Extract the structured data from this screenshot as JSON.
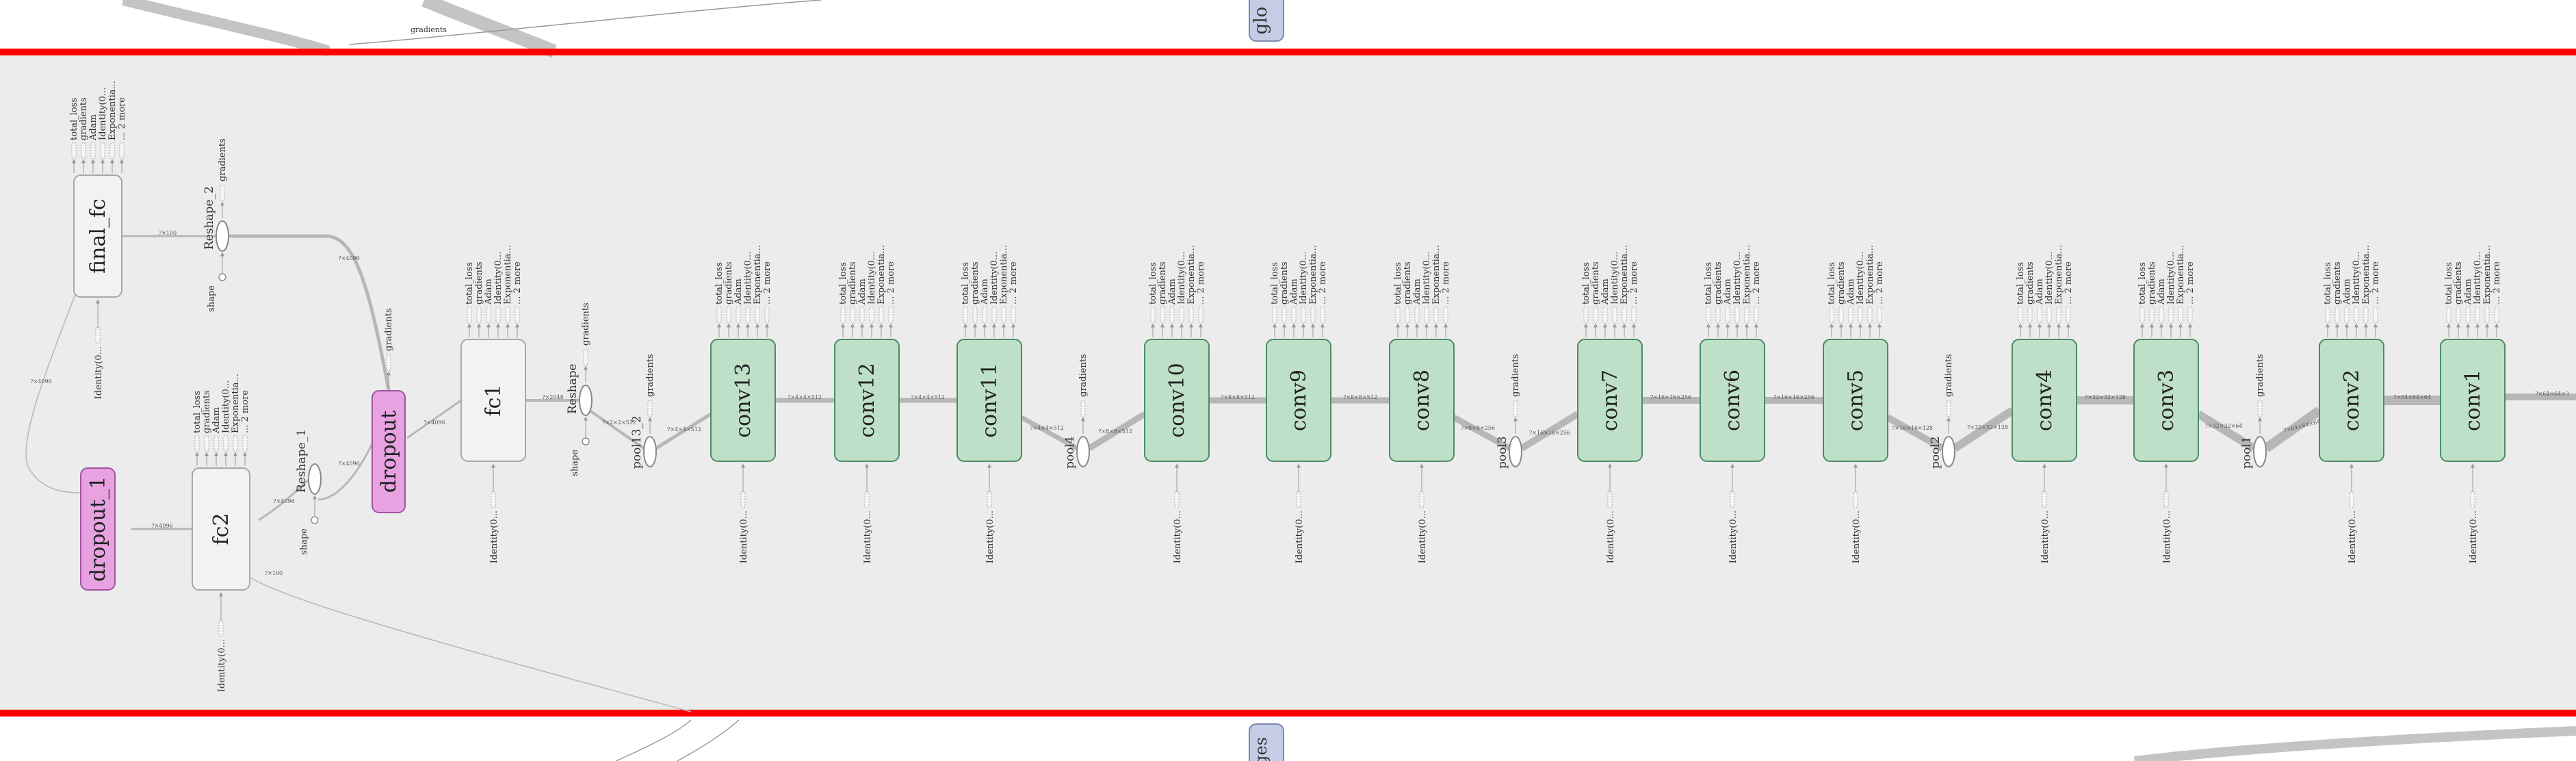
{
  "header": {
    "top_node_label": "glo",
    "bottom_node_label": "ges",
    "top_edge_label": "gradients"
  },
  "conv_nodes": [
    "conv1",
    "conv2",
    "conv3",
    "conv4",
    "conv5",
    "conv6",
    "conv7",
    "conv8",
    "conv9",
    "conv10",
    "conv11",
    "conv12",
    "conv13"
  ],
  "pool_nodes": [
    "pool1",
    "pool2",
    "pool3",
    "pool4",
    "pool13_2"
  ],
  "fc_nodes": {
    "fc1": "fc1",
    "fc2": "fc2",
    "final_fc": "final_fc"
  },
  "dropout_nodes": {
    "dropout": "dropout",
    "dropout_1": "dropout_1"
  },
  "reshape_nodes": {
    "reshape": "Reshape",
    "reshape_1": "Reshape_1",
    "reshape_2": "Reshape_2"
  },
  "port_labels": {
    "outputs": [
      "total_loss",
      "gradients",
      "Adam",
      "Identity(0...",
      "Exponentia...",
      "... 2 more"
    ],
    "gradients": "gradients",
    "identity": "Identity(0...",
    "shape": "shape"
  },
  "edge_labels": {
    "conv1_conv2": "?×64×64×3",
    "conv2_pool1": "?×64×64×64",
    "pool1_conv3": "?×32×32×64",
    "conv3_conv4": "?×32×32×128",
    "conv4_pool2": "?×32×32×128",
    "pool2_conv5": "?×16×16×128",
    "conv5_conv6": "?×16×16×256",
    "conv6_conv7": "?×16×16×256",
    "conv7_pool3": "?×16×16×256",
    "pool3_conv8": "?×8×8×256",
    "conv8_conv9": "?×8×8×512",
    "conv9_conv10": "?×8×8×512",
    "conv10_pool4": "?×8×8×512",
    "pool4_conv11": "?×4×4×512",
    "conv11_conv12": "?×4×4×512",
    "conv12_conv13": "?×4×4×512",
    "conv13_pool13": "?×4×4×512",
    "pool13_reshape": "?×2×2×512",
    "reshape_fc1": "?×2048",
    "fc1_dropout": "?×4096",
    "dropout_reshape1": "?×4096",
    "reshape1_fc2": "?×4096",
    "fc2_dropout1": "?×4096",
    "dropout1_finalfc": "?×4096",
    "finalfc_reshape2": "?×100",
    "reshape2_dropout": "?×4096",
    "fc2_bottom": "?×100"
  },
  "colors": {
    "background": "#ececec",
    "band": "#ff0000",
    "conv_fill": "#bfe0c8",
    "conv_stroke": "#4f8a63",
    "dropout_fill": "#e8a2e2",
    "dropout_stroke": "#a055a0",
    "fc_fill": "#f2f2f2",
    "fc_stroke": "#a8a8a8",
    "meta_fill": "#c5cde6",
    "edge": "#b7b7b7"
  }
}
